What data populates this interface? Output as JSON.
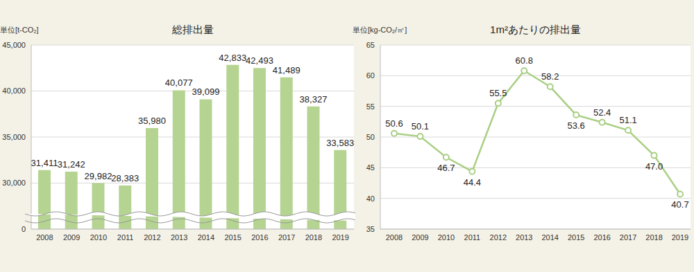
{
  "chart_data": [
    {
      "type": "bar",
      "title": "総排出量",
      "y_label": "単位[t-CO₂]",
      "categories": [
        "2008",
        "2009",
        "2010",
        "2011",
        "2012",
        "2013",
        "2014",
        "2015",
        "2016",
        "2017",
        "2018",
        "2019"
      ],
      "values": [
        31411,
        31242,
        29982,
        28383,
        35980,
        40077,
        39099,
        42833,
        42493,
        41489,
        38327,
        33583
      ],
      "value_labels": [
        "31,411",
        "31,242",
        "29,982",
        "28,383",
        "35,980",
        "40,077",
        "39,099",
        "42,833",
        "42,493",
        "41,489",
        "38,327",
        "33,583"
      ],
      "color": "#b5d491",
      "ylim": [
        0,
        45000
      ],
      "yticks": [
        0,
        {
          "value": 30000,
          "label": "30,000"
        },
        {
          "value": 35000,
          "label": "35,000"
        },
        {
          "value": 40000,
          "label": "40,000"
        },
        {
          "value": 45000,
          "label": "45,000"
        }
      ],
      "grid": true,
      "data_labels": true
    },
    {
      "type": "line",
      "title": "1m²あたりの排出量",
      "y_label": "単位[kg-CO₂/㎡]",
      "categories": [
        "2008",
        "2009",
        "2010",
        "2011",
        "2012",
        "2013",
        "2014",
        "2015",
        "2016",
        "2017",
        "2018",
        "2019"
      ],
      "values": [
        50.6,
        50.1,
        46.7,
        44.4,
        55.5,
        60.8,
        58.2,
        53.6,
        52.4,
        51.1,
        47.0,
        40.7
      ],
      "value_labels": [
        "50.6",
        "50.1",
        "46.7",
        "44.4",
        "55.5",
        "60.8",
        "58.2",
        "53.6",
        "52.4",
        "51.1",
        "47.0",
        "40.7"
      ],
      "color": "#a9cf84",
      "marker": "circle",
      "ylim": [
        35,
        65
      ],
      "yticks": [
        35,
        40,
        45,
        50,
        55,
        60,
        65
      ],
      "grid": true,
      "data_labels": true
    }
  ]
}
